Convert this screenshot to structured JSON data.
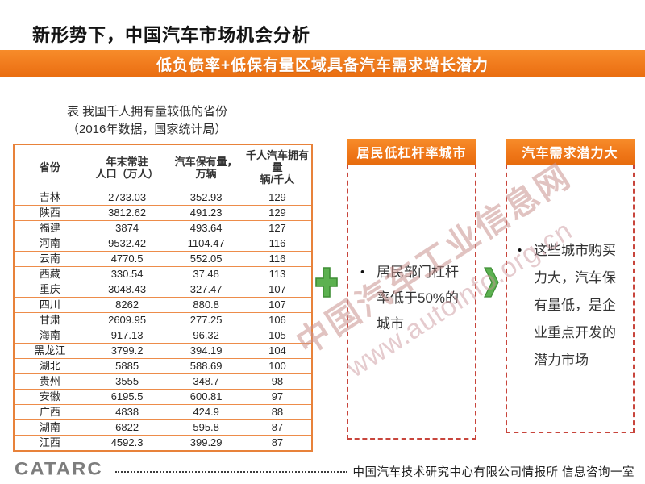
{
  "page": {
    "title": "新形势下，中国汽车市场机会分析",
    "banner": "低负债率+低保有量区域具备汽车需求增长潜力"
  },
  "table_section": {
    "caption_line1": "表 我国千人拥有量较低的省份",
    "caption_line2": "（2016年数据，国家统计局）"
  },
  "chart_data": {
    "type": "table",
    "title": "我国千人拥有量较低的省份（2016年数据，国家统计局）",
    "columns": [
      "省份",
      "年末常驻\n人口（万人）",
      "汽车保有量，\n万辆",
      "千人汽车拥有量\n辆/千人"
    ],
    "rows": [
      [
        "吉林",
        "2733.03",
        "352.93",
        "129"
      ],
      [
        "陕西",
        "3812.62",
        "491.23",
        "129"
      ],
      [
        "福建",
        "3874",
        "493.64",
        "127"
      ],
      [
        "河南",
        "9532.42",
        "1104.47",
        "116"
      ],
      [
        "云南",
        "4770.5",
        "552.05",
        "116"
      ],
      [
        "西藏",
        "330.54",
        "37.48",
        "113"
      ],
      [
        "重庆",
        "3048.43",
        "327.47",
        "107"
      ],
      [
        "四川",
        "8262",
        "880.8",
        "107"
      ],
      [
        "甘肃",
        "2609.95",
        "277.25",
        "106"
      ],
      [
        "海南",
        "917.13",
        "96.32",
        "105"
      ],
      [
        "黑龙江",
        "3799.2",
        "394.19",
        "104"
      ],
      [
        "湖北",
        "5885",
        "588.69",
        "100"
      ],
      [
        "贵州",
        "3555",
        "348.7",
        "98"
      ],
      [
        "安徽",
        "6195.5",
        "600.81",
        "97"
      ],
      [
        "广西",
        "4838",
        "424.9",
        "88"
      ],
      [
        "湖南",
        "6822",
        "595.8",
        "87"
      ],
      [
        "江西",
        "4592.3",
        "399.29",
        "87"
      ]
    ]
  },
  "flow": {
    "boxes": [
      {
        "header": "居民低杠杆率城市",
        "bullet_glyph": "•",
        "bullet": "居民部门杠杆率低于50%的城市"
      },
      {
        "header": "汽车需求潜力大",
        "bullet_glyph": "•",
        "bullet": "这些城市购买力大，汽车保有量低，是企业重点开发的潜力市场"
      }
    ]
  },
  "watermark": {
    "line1": "中国汽车工业信息网",
    "line2": "www.autoinfo.org.cn"
  },
  "footer": {
    "logo": "CATARC",
    "org": "中国汽车技术研究中心有限公司情报所  信息咨询一室"
  },
  "colors": {
    "accent_orange": "#EF7618",
    "table_border_orange": "#E8823A",
    "dashed_red": "#C8453C",
    "green": "#5CB150"
  }
}
